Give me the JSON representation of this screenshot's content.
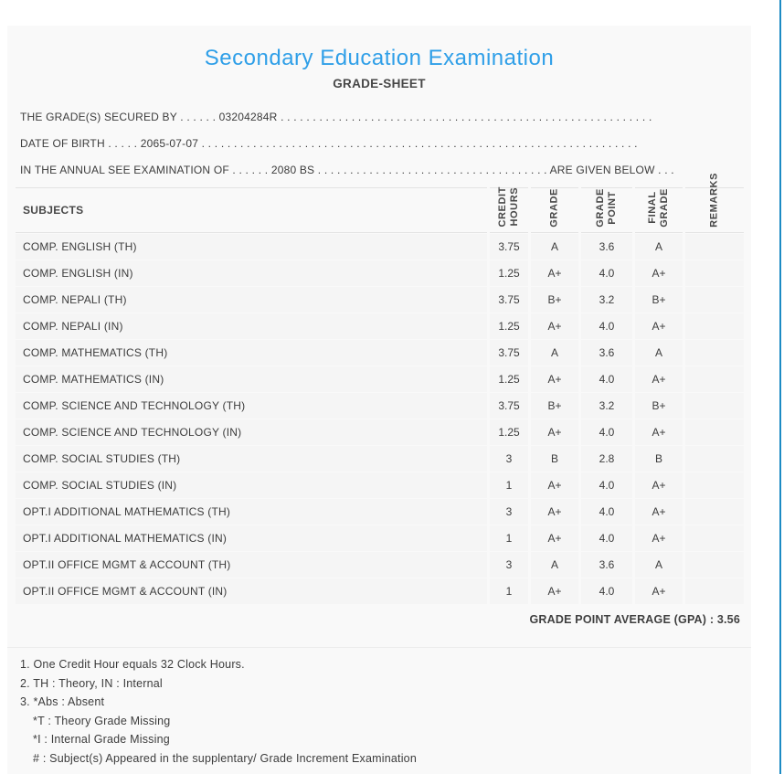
{
  "page": {
    "title": "Secondary Education Examination",
    "subtitle": "GRADE-SHEET",
    "accent_color": "#2f9fe8",
    "edge_line_color": "#1d8bc4"
  },
  "info_lines": [
    "THE GRADE(S) SECURED BY . . . . . . 03204284R . . . . . . . . . . . . . . . . . . . . . . . . . . . . . . . . . . . . . . . . . . . . . . . . . . . . . . . . . .",
    "DATE OF BIRTH . . . . . 2065-07-07 . . . . . . . . . . . . . . . . . . . . . . . . . . . . . . . . . . . . . . . . . . . . . . . . . . . . . . . . . . . . . . . . . . . .",
    "IN THE ANNUAL SEE EXAMINATION OF . . . . . . 2080 BS . . . . . . . . . . . . . . . . . . . . . . . . . . . . . . . . . . . . ARE GIVEN BELOW . . ."
  ],
  "table": {
    "subjects_header": "SUBJECTS",
    "column_headers": {
      "credit_hours": "CREDIT\nHOURS",
      "grade": "GRADE",
      "grade_point": "GRADE\nPOINT",
      "final_grade": "FINAL\nGRADE",
      "remarks": "REMARKS"
    },
    "rows": [
      {
        "subject": "COMP. ENGLISH (TH)",
        "credit_hours": "3.75",
        "grade": "A",
        "grade_point": "3.6",
        "final_grade": "A",
        "remarks": ""
      },
      {
        "subject": "COMP. ENGLISH (IN)",
        "credit_hours": "1.25",
        "grade": "A+",
        "grade_point": "4.0",
        "final_grade": "A+",
        "remarks": ""
      },
      {
        "subject": "COMP. NEPALI (TH)",
        "credit_hours": "3.75",
        "grade": "B+",
        "grade_point": "3.2",
        "final_grade": "B+",
        "remarks": ""
      },
      {
        "subject": "COMP. NEPALI (IN)",
        "credit_hours": "1.25",
        "grade": "A+",
        "grade_point": "4.0",
        "final_grade": "A+",
        "remarks": ""
      },
      {
        "subject": "COMP. MATHEMATICS (TH)",
        "credit_hours": "3.75",
        "grade": "A",
        "grade_point": "3.6",
        "final_grade": "A",
        "remarks": ""
      },
      {
        "subject": "COMP. MATHEMATICS (IN)",
        "credit_hours": "1.25",
        "grade": "A+",
        "grade_point": "4.0",
        "final_grade": "A+",
        "remarks": ""
      },
      {
        "subject": "COMP. SCIENCE AND TECHNOLOGY (TH)",
        "credit_hours": "3.75",
        "grade": "B+",
        "grade_point": "3.2",
        "final_grade": "B+",
        "remarks": ""
      },
      {
        "subject": "COMP. SCIENCE AND TECHNOLOGY (IN)",
        "credit_hours": "1.25",
        "grade": "A+",
        "grade_point": "4.0",
        "final_grade": "A+",
        "remarks": ""
      },
      {
        "subject": "COMP. SOCIAL STUDIES (TH)",
        "credit_hours": "3",
        "grade": "B",
        "grade_point": "2.8",
        "final_grade": "B",
        "remarks": ""
      },
      {
        "subject": "COMP. SOCIAL STUDIES (IN)",
        "credit_hours": "1",
        "grade": "A+",
        "grade_point": "4.0",
        "final_grade": "A+",
        "remarks": ""
      },
      {
        "subject": "OPT.I ADDITIONAL MATHEMATICS (TH)",
        "credit_hours": "3",
        "grade": "A+",
        "grade_point": "4.0",
        "final_grade": "A+",
        "remarks": ""
      },
      {
        "subject": "OPT.I ADDITIONAL MATHEMATICS (IN)",
        "credit_hours": "1",
        "grade": "A+",
        "grade_point": "4.0",
        "final_grade": "A+",
        "remarks": ""
      },
      {
        "subject": "OPT.II OFFICE MGMT & ACCOUNT (TH)",
        "credit_hours": "3",
        "grade": "A",
        "grade_point": "3.6",
        "final_grade": "A",
        "remarks": ""
      },
      {
        "subject": "OPT.II OFFICE MGMT & ACCOUNT (IN)",
        "credit_hours": "1",
        "grade": "A+",
        "grade_point": "4.0",
        "final_grade": "A+",
        "remarks": ""
      }
    ]
  },
  "gpa_line": "GRADE POINT AVERAGE (GPA) : 3.56",
  "notes": [
    "1. One Credit Hour equals 32 Clock Hours.",
    "2. TH : Theory, IN : Internal",
    "3. *Abs : Absent",
    "*T : Theory Grade Missing",
    "*I : Internal Grade Missing",
    "# : Subject(s) Appeared in the supplentary/ Grade Increment Examination"
  ]
}
